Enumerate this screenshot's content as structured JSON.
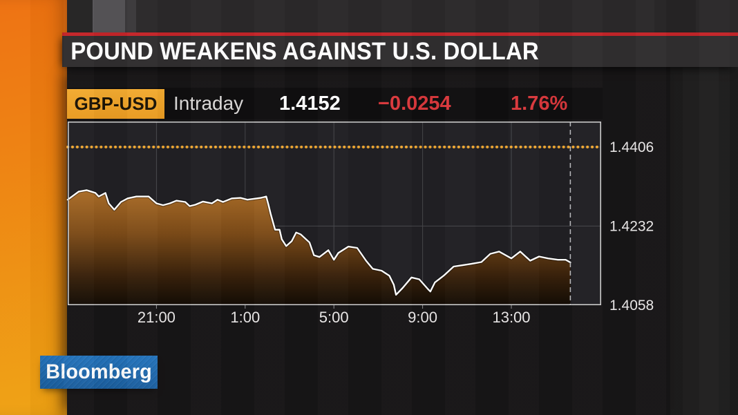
{
  "headline": {
    "text": "POUND WEAKENS AGAINST U.S. DOLLAR"
  },
  "ticker": {
    "symbol": "GBP-USD",
    "range_label": "Intraday",
    "last_price": "1.4152",
    "change": "−0.0254",
    "change_pct": "1.76%"
  },
  "branding": {
    "logo_text": "Bloomberg"
  },
  "colors": {
    "accent_orange": "#eea32c",
    "headline_red": "#c32529",
    "negative_red": "#d9383c",
    "brand_blue": "#1e6aad",
    "line_white": "#ffffff",
    "fill_top_brown": "#ab6d28",
    "fill_bottom_brown": "#130c05",
    "reference_dotted_orange": "#f0a833"
  },
  "chart_data": {
    "type": "line",
    "title": "GBP-USD Intraday",
    "xlabel": "",
    "ylabel": "",
    "grid": true,
    "legend": false,
    "x_unit": "hours since 17:00",
    "xlim": [
      0,
      24.05
    ],
    "ylim": [
      1.4058,
      1.4462
    ],
    "x_ticks": [
      {
        "t": 4,
        "label": "21:00"
      },
      {
        "t": 8,
        "label": "1:00"
      },
      {
        "t": 12,
        "label": "5:00"
      },
      {
        "t": 16,
        "label": "9:00"
      },
      {
        "t": 20,
        "label": "13:00"
      }
    ],
    "y_ticks": [
      {
        "value": 1.4406,
        "label": "1.4406"
      },
      {
        "value": 1.4232,
        "label": "1.4232"
      },
      {
        "value": 1.4058,
        "label": "1.4058"
      }
    ],
    "reference_line": {
      "value": 1.4406,
      "style": "dotted",
      "color": "#f0a833"
    },
    "cursor_t": 22.66,
    "series": [
      {
        "name": "GBP-USD",
        "points": [
          [
            0,
            1.429
          ],
          [
            0.5,
            1.4308
          ],
          [
            0.85,
            1.4311
          ],
          [
            1.25,
            1.4305
          ],
          [
            1.4,
            1.4297
          ],
          [
            1.7,
            1.4305
          ],
          [
            1.85,
            1.4282
          ],
          [
            2.1,
            1.4268
          ],
          [
            2.4,
            1.4285
          ],
          [
            2.7,
            1.4293
          ],
          [
            3.1,
            1.4297
          ],
          [
            3.65,
            1.4297
          ],
          [
            4,
            1.4282
          ],
          [
            4.3,
            1.4278
          ],
          [
            4.6,
            1.4282
          ],
          [
            4.9,
            1.4288
          ],
          [
            5.3,
            1.4285
          ],
          [
            5.5,
            1.4276
          ],
          [
            5.75,
            1.4279
          ],
          [
            6.1,
            1.4286
          ],
          [
            6.5,
            1.4282
          ],
          [
            6.75,
            1.429
          ],
          [
            7,
            1.4285
          ],
          [
            7.4,
            1.4293
          ],
          [
            7.8,
            1.4294
          ],
          [
            8.1,
            1.429
          ],
          [
            8.7,
            1.4294
          ],
          [
            8.95,
            1.4297
          ],
          [
            9.05,
            1.4279
          ],
          [
            9.15,
            1.4259
          ],
          [
            9.35,
            1.4224
          ],
          [
            9.55,
            1.4224
          ],
          [
            9.65,
            1.4203
          ],
          [
            9.85,
            1.4188
          ],
          [
            10.1,
            1.4199
          ],
          [
            10.3,
            1.4218
          ],
          [
            10.5,
            1.4214
          ],
          [
            10.9,
            1.4196
          ],
          [
            11.1,
            1.4168
          ],
          [
            11.35,
            1.4164
          ],
          [
            11.75,
            1.4179
          ],
          [
            12,
            1.4158
          ],
          [
            12.2,
            1.4173
          ],
          [
            12.65,
            1.4187
          ],
          [
            13.05,
            1.4184
          ],
          [
            13.45,
            1.4156
          ],
          [
            13.75,
            1.4138
          ],
          [
            14.15,
            1.4134
          ],
          [
            14.5,
            1.4123
          ],
          [
            14.7,
            1.4103
          ],
          [
            14.8,
            1.4081
          ],
          [
            15.1,
            1.4096
          ],
          [
            15.5,
            1.4119
          ],
          [
            15.85,
            1.4115
          ],
          [
            16.25,
            1.4093
          ],
          [
            16.35,
            1.4088
          ],
          [
            16.55,
            1.4108
          ],
          [
            16.95,
            1.4123
          ],
          [
            17.4,
            1.4143
          ],
          [
            17.8,
            1.4146
          ],
          [
            18.2,
            1.4149
          ],
          [
            18.65,
            1.4153
          ],
          [
            19.05,
            1.4171
          ],
          [
            19.45,
            1.4176
          ],
          [
            20,
            1.4161
          ],
          [
            20.4,
            1.4176
          ],
          [
            20.85,
            1.4156
          ],
          [
            21.25,
            1.4165
          ],
          [
            21.65,
            1.4161
          ],
          [
            22.1,
            1.4158
          ],
          [
            22.45,
            1.4158
          ],
          [
            22.66,
            1.4152
          ]
        ]
      }
    ]
  }
}
